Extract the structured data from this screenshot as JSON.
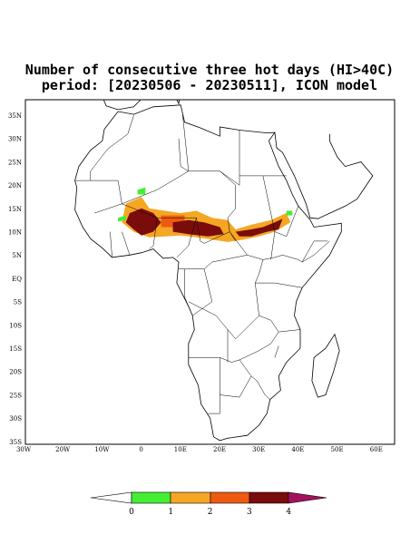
{
  "title": [
    "Number of consecutive three hot days (HI>40C)",
    "period: [20230506 - 20230511], ICON model"
  ],
  "map": {
    "lat_labels": [
      "35N",
      "30N",
      "25N",
      "20N",
      "15N",
      "10N",
      "5N",
      "EQ",
      "5S",
      "10S",
      "15S",
      "20S",
      "25S",
      "30S",
      "35S"
    ],
    "lon_labels": [
      "30W",
      "20W",
      "10W",
      "0",
      "10E",
      "20E",
      "30E",
      "40E",
      "50E",
      "60E"
    ]
  },
  "colorbar": {
    "labels": [
      "0",
      "1",
      "2",
      "3",
      "4"
    ]
  }
}
